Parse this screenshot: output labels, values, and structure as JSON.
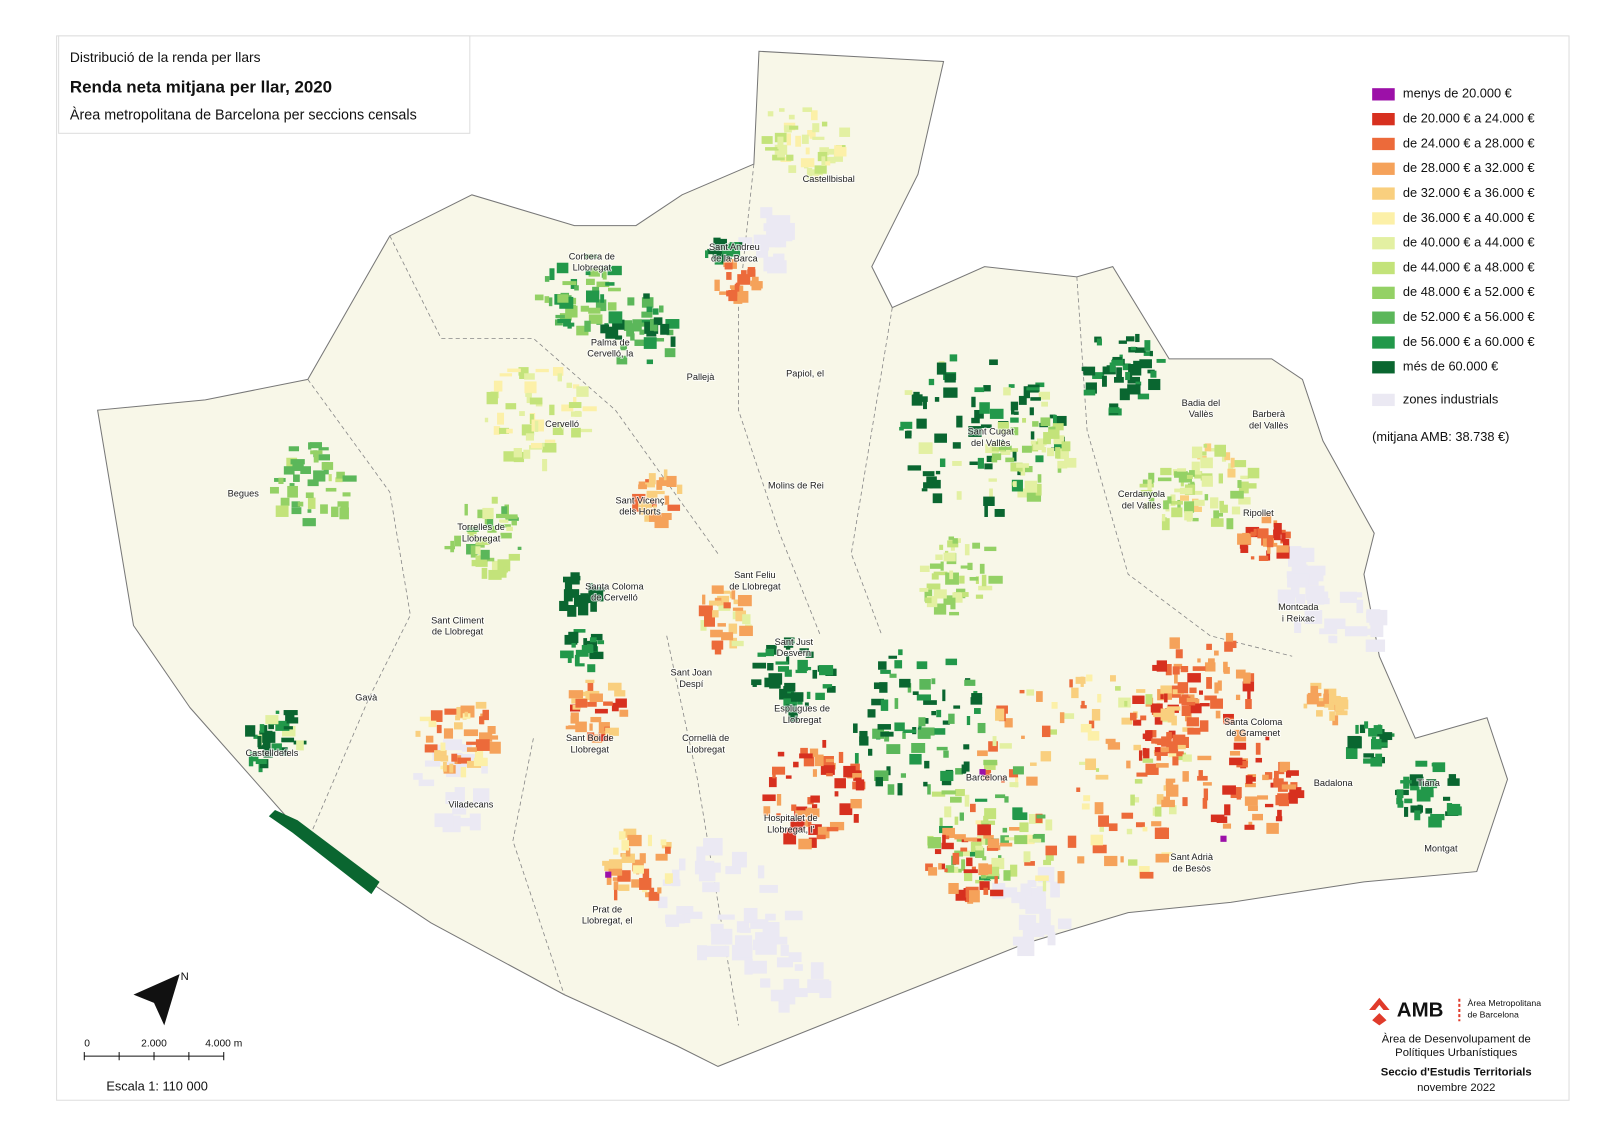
{
  "header": {
    "subtitle": "Distribució de la renda per llars",
    "title": "Renda neta mitjana per llar, 2020",
    "area": "Àrea metropolitana de Barcelona per seccions censals"
  },
  "legend": {
    "items": [
      {
        "label": "menys de 20.000 €",
        "color": "#9c10a8"
      },
      {
        "label": "de 20.000 € a 24.000 €",
        "color": "#d7301f"
      },
      {
        "label": "de 24.000 € a 28.000 €",
        "color": "#ec6a3a"
      },
      {
        "label": "de 28.000 € a 32.000 €",
        "color": "#f5a25a"
      },
      {
        "label": "de 32.000 € a 36.000 €",
        "color": "#f9cf7e"
      },
      {
        "label": "de 36.000 € a 40.000 €",
        "color": "#fcf0a8"
      },
      {
        "label": "de 40.000 € a 44.000 €",
        "color": "#e3f0a2"
      },
      {
        "label": "de 44.000 € a 48.000 €",
        "color": "#c3e37a"
      },
      {
        "label": "de 48.000 € a 52.000 €",
        "color": "#94d165"
      },
      {
        "label": "de 52.000 € a 56.000 €",
        "color": "#5bb75a"
      },
      {
        "label": "de 56.000 € a 60.000 €",
        "color": "#22984a"
      },
      {
        "label": "més de 60.000 €",
        "color": "#0a6630"
      }
    ],
    "industrial": {
      "label": "zones industrials",
      "color": "#ebe9f3"
    },
    "mean": "(mitjana AMB: 38.738 €)"
  },
  "places": [
    [
      "Castellbisbal"
    ],
    [
      "Corbera de",
      "Llobregat"
    ],
    [
      "Sant Andreu",
      "de la Barca"
    ],
    [
      "Palma de",
      "Cervelló, la"
    ],
    [
      "Pallejà"
    ],
    [
      "Papiol, el"
    ],
    [
      "Cervelló"
    ],
    [
      "Begues"
    ],
    [
      "Sant Vicenç",
      "dels Horts"
    ],
    [
      "Molins de Rei"
    ],
    [
      "Sant Cugat",
      "del Vallès"
    ],
    [
      "Badia del",
      "Vallès"
    ],
    [
      "Barberà",
      "del Vallès"
    ],
    [
      "Cerdanyola",
      "del Vallès"
    ],
    [
      "Ripollet"
    ],
    [
      "Torrelles de",
      "Llobregat"
    ],
    [
      "Sant Feliu",
      "de Llobregat"
    ],
    [
      "Santa Coloma",
      "de Cervelló"
    ],
    [
      "Sant Climent",
      "de Llobregat"
    ],
    [
      "Montcada",
      "i Reixac"
    ],
    [
      "Sant Just",
      "Desvern"
    ],
    [
      "Sant Joan",
      "Despí"
    ],
    [
      "Gavà"
    ],
    [
      "Esplugues de",
      "Llobregat"
    ],
    [
      "Santa Coloma",
      "de Gramenet"
    ],
    [
      "Sant Boi de",
      "Llobregat"
    ],
    [
      "Cornellà de",
      "Llobregat"
    ],
    [
      "Castelldefels"
    ],
    [
      "Barcelona"
    ],
    [
      "Badalona"
    ],
    [
      "Tiana"
    ],
    [
      "Viladecans"
    ],
    [
      "Hospitalet de",
      "Llobregat, l'"
    ],
    [
      "Montgat"
    ],
    [
      "Sant Adrià",
      "de Besòs"
    ],
    [
      "Prat de",
      "Llobregat, el"
    ]
  ],
  "north": "N",
  "scale": {
    "ticks": [
      "0",
      "2.000",
      "4.000 m"
    ],
    "label": "Escala 1: 110 000"
  },
  "credits": {
    "logo": "AMB",
    "logo_sub": [
      "Àrea Metropolitana",
      "de Barcelona"
    ],
    "lines": [
      "Àrea de Desenvolupament de",
      "Polítiques Urbanístiques"
    ],
    "unit": "Seccio d'Estudis Territorials",
    "date": "novembre 2022"
  }
}
